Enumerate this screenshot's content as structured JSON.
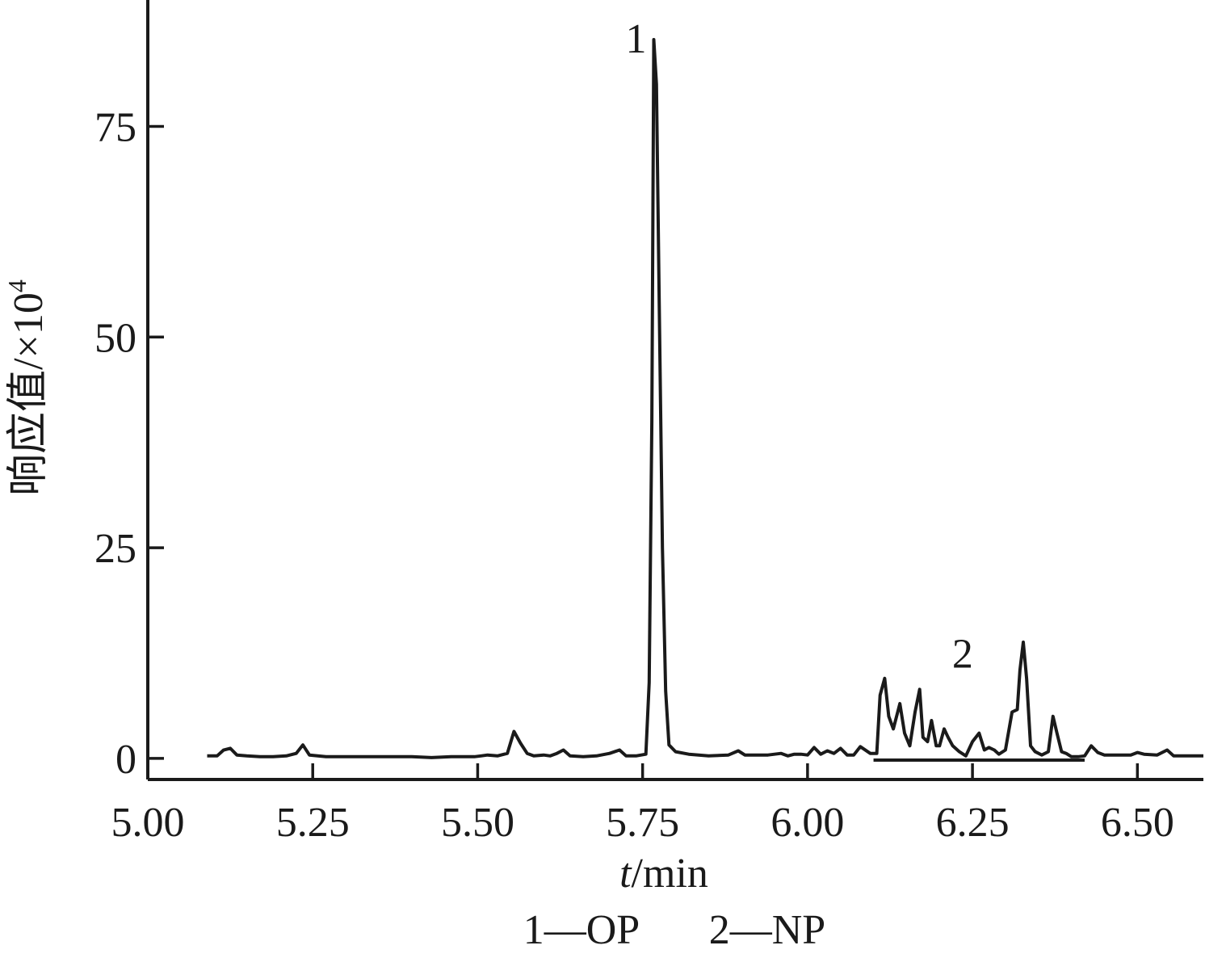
{
  "chart_data": {
    "type": "line",
    "xlabel": {
      "italic": "t",
      "rest": "/min"
    },
    "ylabel": {
      "main": "响应值/×10",
      "sup": "4"
    },
    "xlim": [
      5.0,
      6.6
    ],
    "ylim": [
      -2.5,
      90
    ],
    "x_ticks": [
      {
        "value": 5.0,
        "label": "5.00"
      },
      {
        "value": 5.25,
        "label": "5.25"
      },
      {
        "value": 5.5,
        "label": "5.50"
      },
      {
        "value": 5.75,
        "label": "5.75"
      },
      {
        "value": 6.0,
        "label": "6.00"
      },
      {
        "value": 6.25,
        "label": "6.25"
      },
      {
        "value": 6.5,
        "label": "6.50"
      }
    ],
    "y_ticks": [
      {
        "value": 0,
        "label": "0"
      },
      {
        "value": 25,
        "label": "25"
      },
      {
        "value": 50,
        "label": "50"
      },
      {
        "value": 75,
        "label": "75"
      }
    ],
    "grid": false,
    "legend": "bottom-center",
    "legend_items": [
      {
        "text": "1—OP"
      },
      {
        "text": "2—NP"
      }
    ],
    "peak_labels": [
      {
        "label": "1",
        "x": 5.74,
        "y": 85.5
      },
      {
        "label": "2",
        "x": 6.235,
        "y": 12.5
      }
    ],
    "baseline_segments": [
      {
        "x_start": 6.1,
        "x_end": 6.42,
        "y": -0.2
      }
    ],
    "series": [
      {
        "color": "#1a1a1a",
        "x": [
          5.09,
          5.105,
          5.115,
          5.125,
          5.135,
          5.15,
          5.17,
          5.19,
          5.21,
          5.225,
          5.235,
          5.245,
          5.27,
          5.3,
          5.35,
          5.4,
          5.43,
          5.46,
          5.48,
          5.495,
          5.505,
          5.515,
          5.53,
          5.545,
          5.555,
          5.565,
          5.575,
          5.585,
          5.6,
          5.61,
          5.62,
          5.63,
          5.64,
          5.66,
          5.68,
          5.7,
          5.715,
          5.725,
          5.74,
          5.755,
          5.76,
          5.764,
          5.767,
          5.771,
          5.775,
          5.78,
          5.785,
          5.79,
          5.8,
          5.82,
          5.85,
          5.88,
          5.895,
          5.905,
          5.92,
          5.94,
          5.96,
          5.97,
          5.98,
          5.99,
          6.0,
          6.01,
          6.02,
          6.03,
          6.04,
          6.05,
          6.06,
          6.07,
          6.08,
          6.095,
          6.105,
          6.11,
          6.117,
          6.123,
          6.13,
          6.14,
          6.147,
          6.155,
          6.163,
          6.17,
          6.175,
          6.182,
          6.188,
          6.195,
          6.2,
          6.207,
          6.213,
          6.22,
          6.23,
          6.24,
          6.25,
          6.26,
          6.268,
          6.275,
          6.283,
          6.29,
          6.3,
          6.31,
          6.318,
          6.322,
          6.327,
          6.332,
          6.338,
          6.345,
          6.355,
          6.365,
          6.372,
          6.378,
          6.385,
          6.392,
          6.4,
          6.41,
          6.42,
          6.43,
          6.44,
          6.45,
          6.47,
          6.49,
          6.5,
          6.51,
          6.53,
          6.545,
          6.555,
          6.57,
          6.6
        ],
        "y": [
          0.3,
          0.3,
          1.0,
          1.2,
          0.4,
          0.3,
          0.2,
          0.2,
          0.3,
          0.6,
          1.6,
          0.4,
          0.2,
          0.2,
          0.2,
          0.2,
          0.1,
          0.2,
          0.2,
          0.2,
          0.3,
          0.4,
          0.3,
          0.6,
          3.2,
          1.8,
          0.6,
          0.3,
          0.4,
          0.3,
          0.6,
          1.0,
          0.3,
          0.2,
          0.3,
          0.6,
          1.0,
          0.3,
          0.3,
          0.5,
          9.0,
          40.0,
          85.3,
          80.0,
          55.0,
          25.0,
          8.0,
          1.6,
          0.8,
          0.5,
          0.3,
          0.4,
          0.9,
          0.4,
          0.4,
          0.4,
          0.6,
          0.3,
          0.5,
          0.5,
          0.4,
          1.3,
          0.5,
          0.9,
          0.6,
          1.2,
          0.4,
          0.4,
          1.4,
          0.6,
          0.6,
          7.5,
          9.5,
          5.0,
          3.5,
          6.5,
          3.0,
          1.5,
          5.5,
          8.2,
          2.5,
          2.0,
          4.5,
          1.5,
          1.5,
          3.5,
          2.5,
          1.5,
          0.8,
          0.3,
          2.0,
          3.0,
          1.0,
          1.3,
          1.0,
          0.5,
          1.0,
          5.5,
          5.8,
          10.5,
          13.8,
          9.5,
          1.5,
          0.8,
          0.4,
          0.8,
          5.0,
          3.0,
          0.8,
          0.6,
          0.2,
          0.2,
          0.3,
          1.5,
          0.7,
          0.4,
          0.4,
          0.4,
          0.7,
          0.5,
          0.4,
          1.0,
          0.3,
          0.3,
          0.3
        ]
      }
    ]
  }
}
